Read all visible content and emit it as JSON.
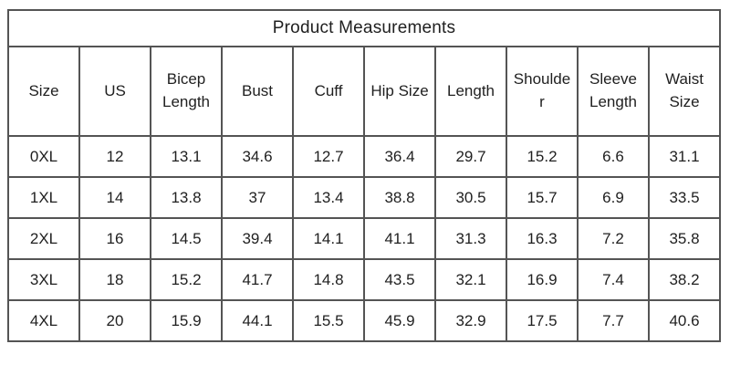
{
  "chart_data": {
    "type": "table",
    "title": "Product Measurements",
    "columns": [
      "Size",
      "US",
      "Bicep Length",
      "Bust",
      "Cuff",
      "Hip Size",
      "Length",
      "Shoulder",
      "Sleeve Length",
      "Waist Size"
    ],
    "rows": [
      [
        "0XL",
        "12",
        "13.1",
        "34.6",
        "12.7",
        "36.4",
        "29.7",
        "15.2",
        "6.6",
        "31.1"
      ],
      [
        "1XL",
        "14",
        "13.8",
        "37",
        "13.4",
        "38.8",
        "30.5",
        "15.7",
        "6.9",
        "33.5"
      ],
      [
        "2XL",
        "16",
        "14.5",
        "39.4",
        "14.1",
        "41.1",
        "31.3",
        "16.3",
        "7.2",
        "35.8"
      ],
      [
        "3XL",
        "18",
        "15.2",
        "41.7",
        "14.8",
        "43.5",
        "32.1",
        "16.9",
        "7.4",
        "38.2"
      ],
      [
        "4XL",
        "20",
        "15.9",
        "44.1",
        "15.5",
        "45.9",
        "32.9",
        "17.5",
        "7.7",
        "40.6"
      ]
    ],
    "text_color": "#1f1f1f",
    "border_color": "#545454",
    "background_color": "#ffffff",
    "layout": {
      "grid": true,
      "title_position": "top-center-spanning-row",
      "cell_alignment": "center"
    }
  }
}
